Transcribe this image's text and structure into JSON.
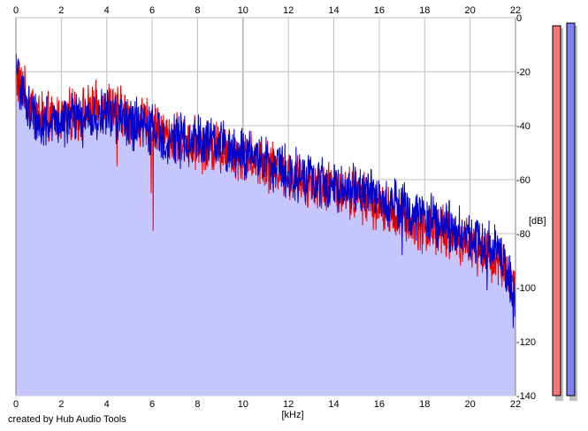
{
  "credit": "created by Hub Audio Tools",
  "colors": {
    "fill": "#c6c6ff",
    "channel_left": "#ee0000",
    "channel_right": "#0000cc",
    "grid": "#c0c0c0",
    "meter_left": "#f07878",
    "meter_right": "#8080f0"
  },
  "chart_data": {
    "type": "line",
    "title": "",
    "xlabel": "[kHz]",
    "ylabel": "[dB]",
    "xlim": [
      0,
      22
    ],
    "ylim": [
      -140,
      0
    ],
    "x_ticks": [
      "0",
      "2",
      "4",
      "6",
      "8",
      "10",
      "12",
      "14",
      "16",
      "18",
      "20",
      "22"
    ],
    "y_ticks": [
      "0",
      "-20",
      "-40",
      "-60",
      "-80",
      "-100",
      "-120",
      "-140"
    ],
    "x_tick_values": [
      0,
      2,
      4,
      6,
      8,
      10,
      12,
      14,
      16,
      18,
      20,
      22
    ],
    "y_tick_values": [
      0,
      -20,
      -40,
      -60,
      -80,
      -100,
      -120,
      -140
    ],
    "grid": true,
    "x": [
      0,
      0.5,
      1,
      1.5,
      2,
      2.5,
      3,
      3.5,
      4,
      4.5,
      5,
      5.5,
      6,
      6.5,
      7,
      7.5,
      8,
      8.5,
      9,
      9.5,
      10,
      10.5,
      11,
      11.5,
      12,
      12.5,
      13,
      13.5,
      14,
      14.5,
      15,
      15.5,
      16,
      16.5,
      17,
      17.5,
      18,
      18.5,
      19,
      19.5,
      20,
      20.5,
      21,
      21.5,
      22
    ],
    "series": [
      {
        "name": "",
        "color": "#ee0000",
        "values": [
          -22,
          -30,
          -36,
          -38,
          -37,
          -36,
          -35,
          -34,
          -32,
          -34,
          -37,
          -39,
          -40,
          -43,
          -45,
          -46,
          -47,
          -48,
          -48,
          -50,
          -51,
          -52,
          -54,
          -56,
          -58,
          -60,
          -61,
          -62,
          -63,
          -64,
          -66,
          -67,
          -70,
          -72,
          -74,
          -76,
          -78,
          -79,
          -80,
          -82,
          -84,
          -86,
          -88,
          -92,
          -100
        ]
      },
      {
        "name": "",
        "color": "#0000cc",
        "values": [
          -20,
          -33,
          -38,
          -40,
          -38,
          -37,
          -38,
          -37,
          -36,
          -37,
          -39,
          -40,
          -42,
          -44,
          -45,
          -46,
          -45,
          -46,
          -47,
          -49,
          -50,
          -51,
          -53,
          -55,
          -57,
          -59,
          -60,
          -61,
          -62,
          -63,
          -64,
          -65,
          -66,
          -68,
          -70,
          -72,
          -74,
          -76,
          -77,
          -79,
          -81,
          -83,
          -85,
          -90,
          -104
        ]
      }
    ],
    "extremes": [
      {
        "x": 6.05,
        "y": -79
      },
      {
        "x": 5.95,
        "y": -65
      },
      {
        "x": 4.45,
        "y": -55
      },
      {
        "x": 17,
        "y": -88
      },
      {
        "x": 20.75,
        "y": -101
      },
      {
        "x": 21.9,
        "y": -115
      },
      {
        "x": 22,
        "y": -108
      }
    ],
    "level_meters": [
      {
        "channel": "left",
        "color": "#f07878",
        "top_db": -3
      },
      {
        "channel": "right",
        "color": "#8080f0",
        "top_db": -2
      }
    ]
  }
}
